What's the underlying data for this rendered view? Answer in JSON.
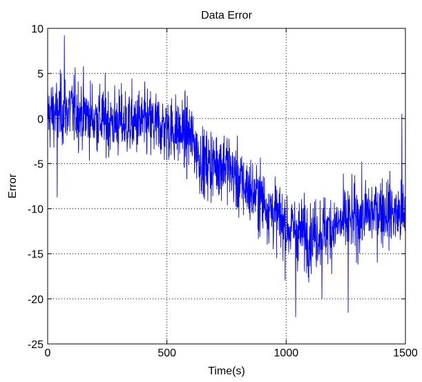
{
  "chart_data": {
    "type": "line",
    "title": "Data Error",
    "xlabel": "Time(s)",
    "ylabel": "Error",
    "xlim": [
      0,
      1500
    ],
    "ylim": [
      -25,
      10
    ],
    "xticks": [
      0,
      500,
      1000,
      1500
    ],
    "yticks": [
      10,
      5,
      0,
      -5,
      -10,
      -15,
      -20,
      -25
    ],
    "grid": true,
    "grid_style": "dotted",
    "colors": {
      "series": "#0000ff",
      "grid": "#000000",
      "axes": "#000000"
    },
    "series": [
      {
        "name": "",
        "sample_count": 1500,
        "trend": {
          "x": [
            0,
            100,
            200,
            300,
            400,
            500,
            600,
            650,
            700,
            750,
            800,
            900,
            1000,
            1100,
            1200,
            1300,
            1400,
            1500
          ],
          "y": [
            0.5,
            1.0,
            0.0,
            -0.5,
            -0.5,
            -1.0,
            -2.0,
            -5.0,
            -5.0,
            -5.0,
            -7.0,
            -9.0,
            -12.0,
            -13.0,
            -12.0,
            -11.0,
            -10.0,
            -11.0
          ]
        },
        "approx_noise_amplitude": 3.0,
        "notable_points": [
          {
            "x": 70,
            "y": 9.2
          },
          {
            "x": 40,
            "y": -8.7
          },
          {
            "x": 1040,
            "y": -22.0
          },
          {
            "x": 1260,
            "y": -21.5
          },
          {
            "x": 1485,
            "y": 0.5
          },
          {
            "x": 1150,
            "y": -20.0
          }
        ]
      }
    ]
  }
}
